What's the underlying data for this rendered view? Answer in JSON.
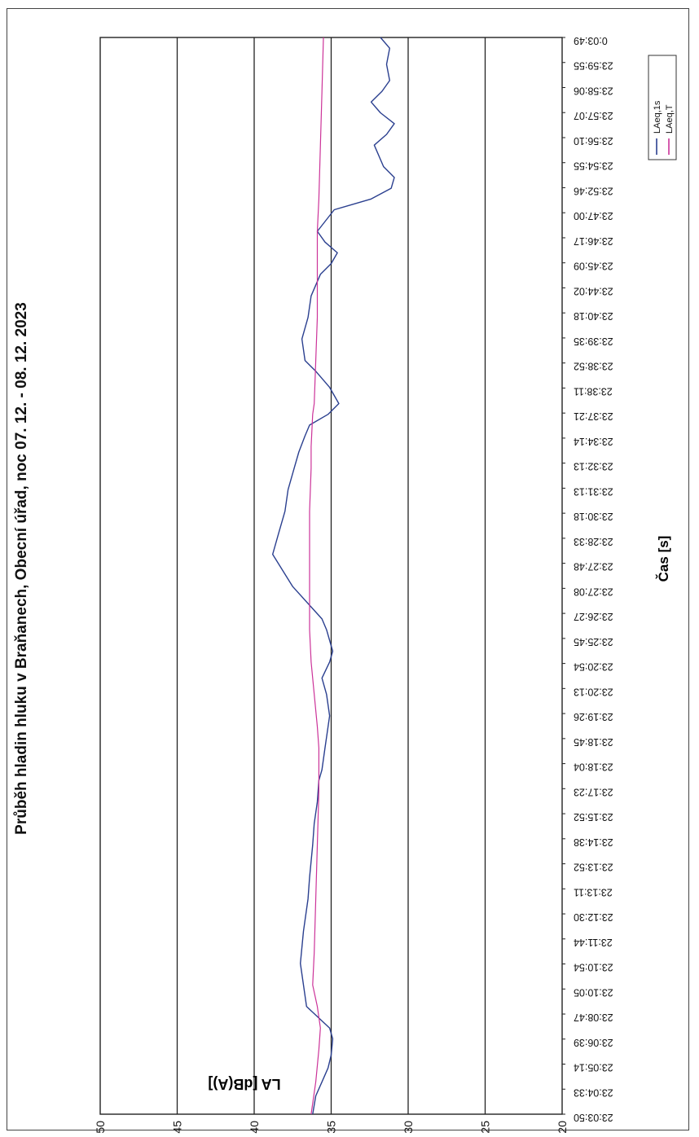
{
  "chart_data": {
    "type": "line",
    "title": "Průběh hladin hluku v Braňanech, Obecní úřad, noc 07. 12. - 08. 12. 2023",
    "xlabel": "Čas [s]",
    "ylabel": "LA [dB(A)]",
    "ylim": [
      20,
      50
    ],
    "yticks": [
      20,
      25,
      30,
      35,
      40,
      45,
      50
    ],
    "grid": true,
    "legend_position": "bottom-right",
    "x_tick_labels": [
      "23:03:50",
      "23:04:33",
      "23:05:14",
      "23:06:39",
      "23:08:47",
      "23:10:05",
      "23:10:54",
      "23:11:44",
      "23:12:30",
      "23:13:11",
      "23:13:52",
      "23:14:38",
      "23:15:52",
      "23:17:23",
      "23:18:04",
      "23:18:45",
      "23:19:26",
      "23:20:13",
      "23:20:54",
      "23:25:45",
      "23:26:27",
      "23:27:08",
      "23:27:48",
      "23:28:33",
      "23:30:18",
      "23:31:13",
      "23:32:13",
      "23:34:14",
      "23:37:21",
      "23:38:11",
      "23:38:52",
      "23:39:35",
      "23:40:18",
      "23:44:02",
      "23:45:09",
      "23:46:17",
      "23:47:00",
      "23:52:46",
      "23:54:55",
      "23:56:10",
      "23:57:07",
      "23:58:06",
      "23:59:55",
      "0:03:49"
    ],
    "series": [
      {
        "name": "LAeq,1s",
        "color": "#2a3f8f",
        "values": [
          36.2,
          36.0,
          35.6,
          35.2,
          35.0,
          34.9,
          35.1,
          36.6,
          37.0,
          36.8,
          36.5,
          36.4,
          36.2,
          36.1,
          35.9,
          35.8,
          35.6,
          35.4,
          35.3,
          35.2,
          35.1,
          35.3,
          35.6,
          35.1,
          34.9,
          35.3,
          35.6,
          37.5,
          38.8,
          38.4,
          38.0,
          37.8,
          37.4,
          37.1,
          36.7,
          36.4,
          35.2,
          34.5,
          35.1,
          36.0,
          36.7,
          36.9,
          36.5,
          36.3,
          35.7,
          35.0,
          34.6,
          35.4,
          35.9,
          34.8,
          32.4,
          31.1,
          30.9,
          31.6,
          32.2,
          31.4,
          30.9,
          31.8,
          32.4,
          31.7,
          31.2,
          31.4,
          31.2,
          31.8
        ],
        "point_x_fraction": [
          0,
          0.017,
          0.03,
          0.043,
          0.055,
          0.07,
          0.08,
          0.1,
          0.14,
          0.17,
          0.2,
          0.22,
          0.25,
          0.27,
          0.29,
          0.31,
          0.32,
          0.34,
          0.35,
          0.36,
          0.37,
          0.39,
          0.405,
          0.42,
          0.43,
          0.45,
          0.46,
          0.49,
          0.52,
          0.54,
          0.56,
          0.58,
          0.6,
          0.615,
          0.63,
          0.64,
          0.65,
          0.66,
          0.675,
          0.69,
          0.7,
          0.72,
          0.74,
          0.76,
          0.78,
          0.79,
          0.8,
          0.81,
          0.82,
          0.84,
          0.85,
          0.86,
          0.87,
          0.88,
          0.9,
          0.91,
          0.92,
          0.93,
          0.94,
          0.95,
          0.96,
          0.975,
          0.99,
          1.0
        ]
      },
      {
        "name": "LAeq,T",
        "color": "#cc3399",
        "values": [
          36.3,
          36.0,
          35.8,
          35.7,
          35.9,
          36.2,
          36.1,
          36.0,
          35.9,
          35.8,
          35.8,
          35.9,
          36.1,
          36.3,
          36.4,
          36.4,
          36.4,
          36.4,
          36.3,
          36.3,
          36.2,
          36.1,
          36.0,
          35.9,
          35.9,
          35.9,
          35.9,
          35.8,
          35.7,
          35.6,
          35.5
        ],
        "point_x_fraction": [
          0,
          0.03,
          0.06,
          0.08,
          0.1,
          0.12,
          0.15,
          0.2,
          0.25,
          0.3,
          0.34,
          0.36,
          0.39,
          0.42,
          0.45,
          0.47,
          0.52,
          0.56,
          0.6,
          0.62,
          0.65,
          0.66,
          0.7,
          0.74,
          0.78,
          0.8,
          0.82,
          0.85,
          0.9,
          0.95,
          1.0
        ]
      }
    ]
  }
}
